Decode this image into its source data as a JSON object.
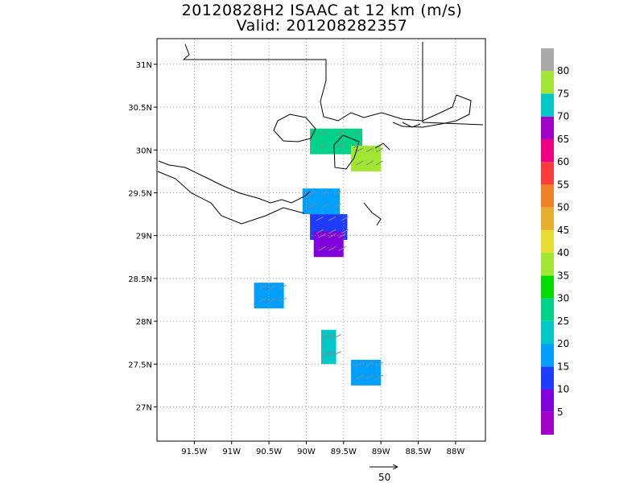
{
  "title": {
    "line1": "20120828H2 ISAAC at 12 km (m/s)",
    "line2": "Valid: 201208282357"
  },
  "axes": {
    "x_ticks": [
      "91.5W",
      "91W",
      "90.5W",
      "90W",
      "89.5W",
      "89W",
      "88.5W",
      "88W"
    ],
    "x_values": [
      -91.5,
      -91.0,
      -90.5,
      -90.0,
      -89.5,
      -89.0,
      -88.5,
      -88.0
    ],
    "y_ticks": [
      "31N",
      "30.5N",
      "30N",
      "29.5N",
      "29N",
      "28.5N",
      "28N",
      "27.5N",
      "27N"
    ],
    "y_values": [
      31.0,
      30.5,
      30.0,
      29.5,
      29.0,
      28.5,
      28.0,
      27.5,
      27.0
    ],
    "lon_range": [
      -92.0,
      -87.6
    ],
    "lat_range": [
      26.6,
      31.3
    ],
    "grid": "dotted"
  },
  "colorbar": {
    "labels": [
      "5",
      "10",
      "15",
      "20",
      "25",
      "30",
      "35",
      "40",
      "45",
      "50",
      "55",
      "60",
      "65",
      "70",
      "75",
      "80"
    ],
    "colors": [
      "#a000c8",
      "#8200dc",
      "#1e3cff",
      "#00a0ff",
      "#00c8c8",
      "#00d28c",
      "#00dc00",
      "#a0e632",
      "#e6dc32",
      "#e6af2d",
      "#f08228",
      "#fa3c3c",
      "#f00082",
      "#a000c8",
      "#00c8c8",
      "#a0e632",
      "#aaaaaa"
    ]
  },
  "reference_vector": {
    "label": "50"
  },
  "data_patches": [
    {
      "lon": -89.6,
      "lat": 30.1,
      "w": 0.7,
      "h": 0.3,
      "color": "#00d28c"
    },
    {
      "lon": -89.2,
      "lat": 29.9,
      "w": 0.4,
      "h": 0.3,
      "color": "#a0e632"
    },
    {
      "lon": -89.8,
      "lat": 29.4,
      "w": 0.5,
      "h": 0.3,
      "color": "#00a0ff"
    },
    {
      "lon": -89.7,
      "lat": 29.1,
      "w": 0.5,
      "h": 0.3,
      "color": "#1e3cff"
    },
    {
      "lon": -89.7,
      "lat": 28.9,
      "w": 0.4,
      "h": 0.3,
      "color": "#8200dc"
    },
    {
      "lon": -90.5,
      "lat": 28.3,
      "w": 0.4,
      "h": 0.3,
      "color": "#00a0ff"
    },
    {
      "lon": -89.7,
      "lat": 27.7,
      "w": 0.2,
      "h": 0.4,
      "color": "#00c8c8"
    },
    {
      "lon": -89.2,
      "lat": 27.4,
      "w": 0.4,
      "h": 0.3,
      "color": "#00a0ff"
    }
  ]
}
